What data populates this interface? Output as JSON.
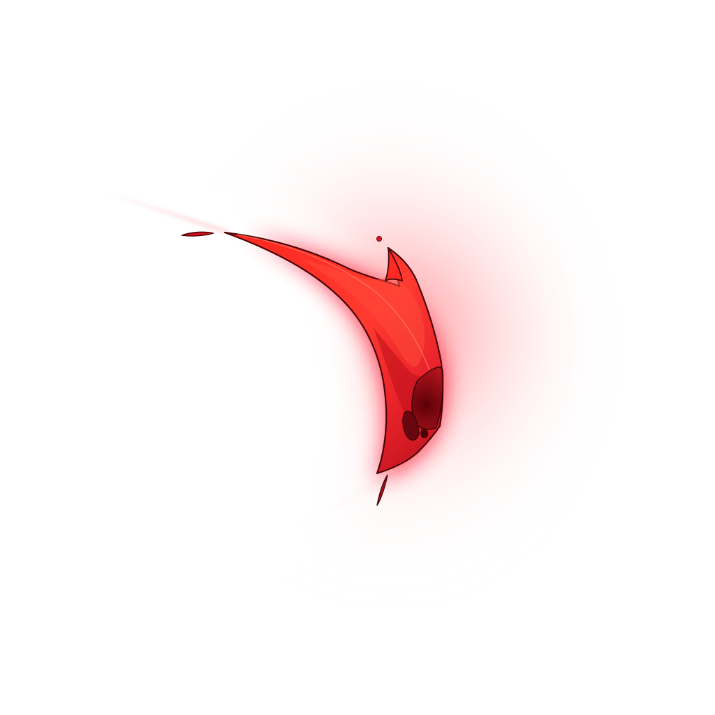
{
  "image": {
    "subject": "slash-effect-sprite",
    "background_color": "#ffffff",
    "colors": {
      "glow": "#ff1f2a",
      "blade_bright": "#ff3a30",
      "blade_mid": "#e8222a",
      "blade_dark": "#7a0a12",
      "outline": "#4a0508"
    }
  }
}
